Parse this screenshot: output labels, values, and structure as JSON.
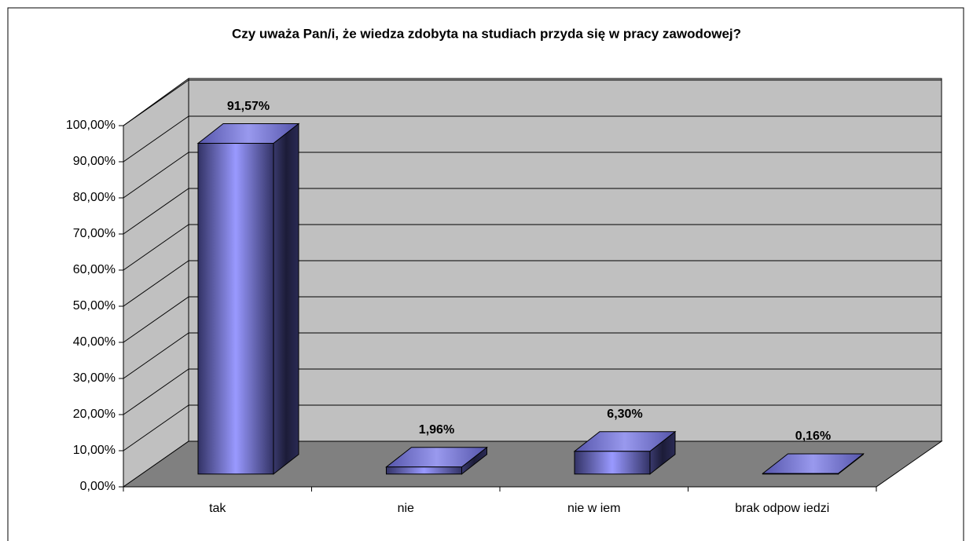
{
  "chart_data": {
    "type": "bar3d",
    "title": "Czy uważa Pan/i, że wiedza zdobyta na studiach przyda się w pracy zawodowej?",
    "categories": [
      "tak",
      "nie",
      "nie w iem",
      "brak odpow iedzi"
    ],
    "values": [
      91.57,
      1.96,
      6.3,
      0.16
    ],
    "value_labels": [
      "91,57%",
      "1,96%",
      "6,30%",
      "0,16%"
    ],
    "color": "#9999ff",
    "ylim": [
      0,
      100
    ],
    "yticks": [
      {
        "value": 0,
        "label": "0,00%"
      },
      {
        "value": 10,
        "label": "10,00%"
      },
      {
        "value": 20,
        "label": "20,00%"
      },
      {
        "value": 30,
        "label": "30,00%"
      },
      {
        "value": 40,
        "label": "40,00%"
      },
      {
        "value": 50,
        "label": "50,00%"
      },
      {
        "value": 60,
        "label": "60,00%"
      },
      {
        "value": 70,
        "label": "70,00%"
      },
      {
        "value": 80,
        "label": "80,00%"
      },
      {
        "value": 90,
        "label": "90,00%"
      },
      {
        "value": 100,
        "label": "100,00%"
      }
    ],
    "grid": true
  }
}
